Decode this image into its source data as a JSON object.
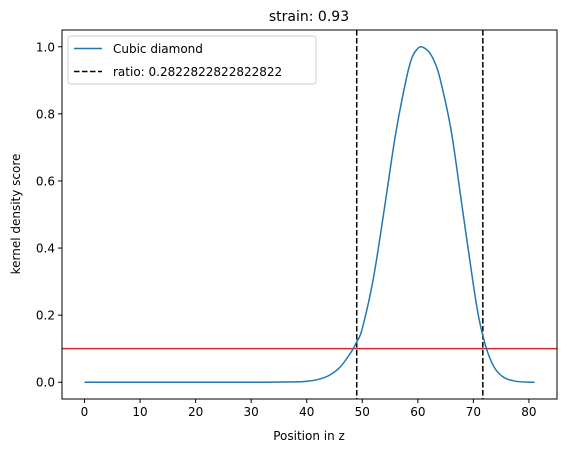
{
  "chart_data": {
    "type": "line",
    "title": "strain: 0.93",
    "xlabel": "Position in z",
    "ylabel": "kernel density score",
    "xlim": [
      -4.05,
      85.05
    ],
    "ylim": [
      -0.05,
      1.05
    ],
    "xticks": [
      0,
      10,
      20,
      30,
      40,
      50,
      60,
      70,
      80
    ],
    "yticks": [
      "0.0",
      "0.2",
      "0.4",
      "0.6",
      "0.8",
      "1.0"
    ],
    "grid": false,
    "legend_position": "top-left",
    "series": [
      {
        "name": "Cubic diamond",
        "color": "#1f77b4",
        "x": [
          0,
          10,
          20,
          30,
          38,
          40,
          42,
          44,
          46,
          48,
          49,
          50,
          52,
          54,
          56,
          58,
          59,
          60,
          60.5,
          61,
          62,
          63,
          64,
          66,
          68,
          70,
          71,
          72,
          73,
          74,
          75,
          76,
          77,
          78,
          80,
          81
        ],
        "y": [
          0.0,
          0.0,
          0.0,
          0.0,
          0.001,
          0.003,
          0.008,
          0.02,
          0.045,
          0.09,
          0.12,
          0.16,
          0.31,
          0.52,
          0.74,
          0.91,
          0.97,
          0.995,
          1.0,
          0.998,
          0.985,
          0.955,
          0.905,
          0.75,
          0.52,
          0.29,
          0.19,
          0.12,
          0.07,
          0.038,
          0.02,
          0.01,
          0.005,
          0.002,
          0.0,
          0.0
        ]
      }
    ],
    "vlines": [
      {
        "name": "ratio: 0.2822822822822822",
        "x": [
          49,
          71.7
        ],
        "color": "#000000",
        "style": "dashed"
      }
    ],
    "hlines": [
      {
        "y": 0.1,
        "color": "#d62728"
      }
    ]
  }
}
